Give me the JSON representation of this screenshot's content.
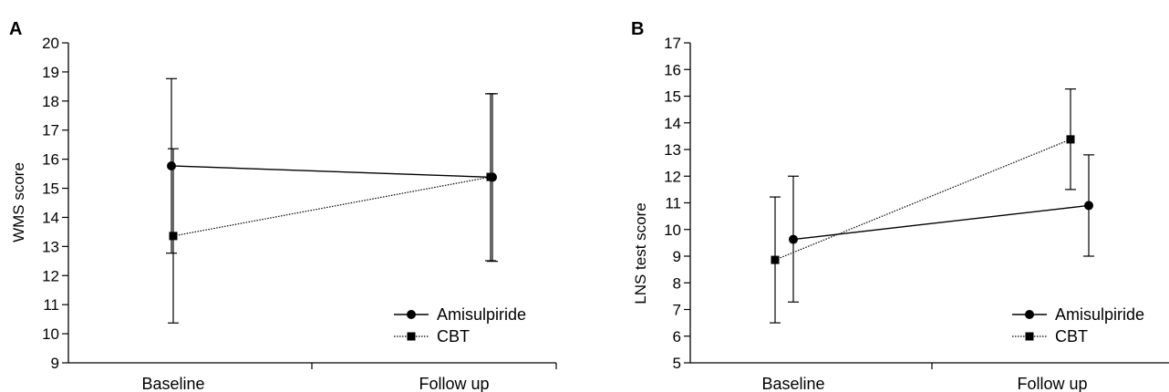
{
  "chart_data": [
    {
      "type": "line",
      "panel": "A",
      "ylabel": "WMS score",
      "xlabel": "",
      "ylim": [
        9,
        20
      ],
      "yticks": [
        "9",
        "10",
        "11",
        "12",
        "13",
        "14",
        "15",
        "16",
        "17",
        "18",
        "19",
        "20"
      ],
      "categories": [
        "Baseline",
        "Follow up"
      ],
      "series": [
        {
          "name": "Amisulpiride",
          "values": [
            15.77,
            15.38
          ],
          "lower": [
            12.77,
            12.49
          ],
          "upper": [
            18.77,
            18.25
          ],
          "marker": "circle",
          "line": "solid"
        },
        {
          "name": "CBT",
          "values": [
            13.36,
            15.39
          ],
          "lower": [
            10.37,
            12.51
          ],
          "upper": [
            16.36,
            18.25
          ],
          "marker": "square",
          "line": "dotted"
        }
      ],
      "legend": "bottom-right",
      "grid": false
    },
    {
      "type": "line",
      "panel": "B",
      "ylabel": "LNS test score",
      "xlabel": "",
      "ylim": [
        5,
        17
      ],
      "yticks": [
        "5",
        "6",
        "7",
        "8",
        "9",
        "10",
        "11",
        "12",
        "13",
        "14",
        "15",
        "16",
        "17"
      ],
      "categories": [
        "Baseline",
        "Follow up"
      ],
      "series": [
        {
          "name": "Amisulpiride",
          "values": [
            9.63,
            10.9
          ],
          "lower": [
            7.28,
            9.0
          ],
          "upper": [
            12.0,
            12.8
          ],
          "marker": "circle",
          "line": "solid"
        },
        {
          "name": "CBT",
          "values": [
            8.86,
            13.38
          ],
          "lower": [
            6.5,
            11.5
          ],
          "upper": [
            11.22,
            15.27
          ],
          "marker": "square",
          "line": "dotted"
        }
      ],
      "legend": "bottom-right",
      "grid": false
    }
  ]
}
